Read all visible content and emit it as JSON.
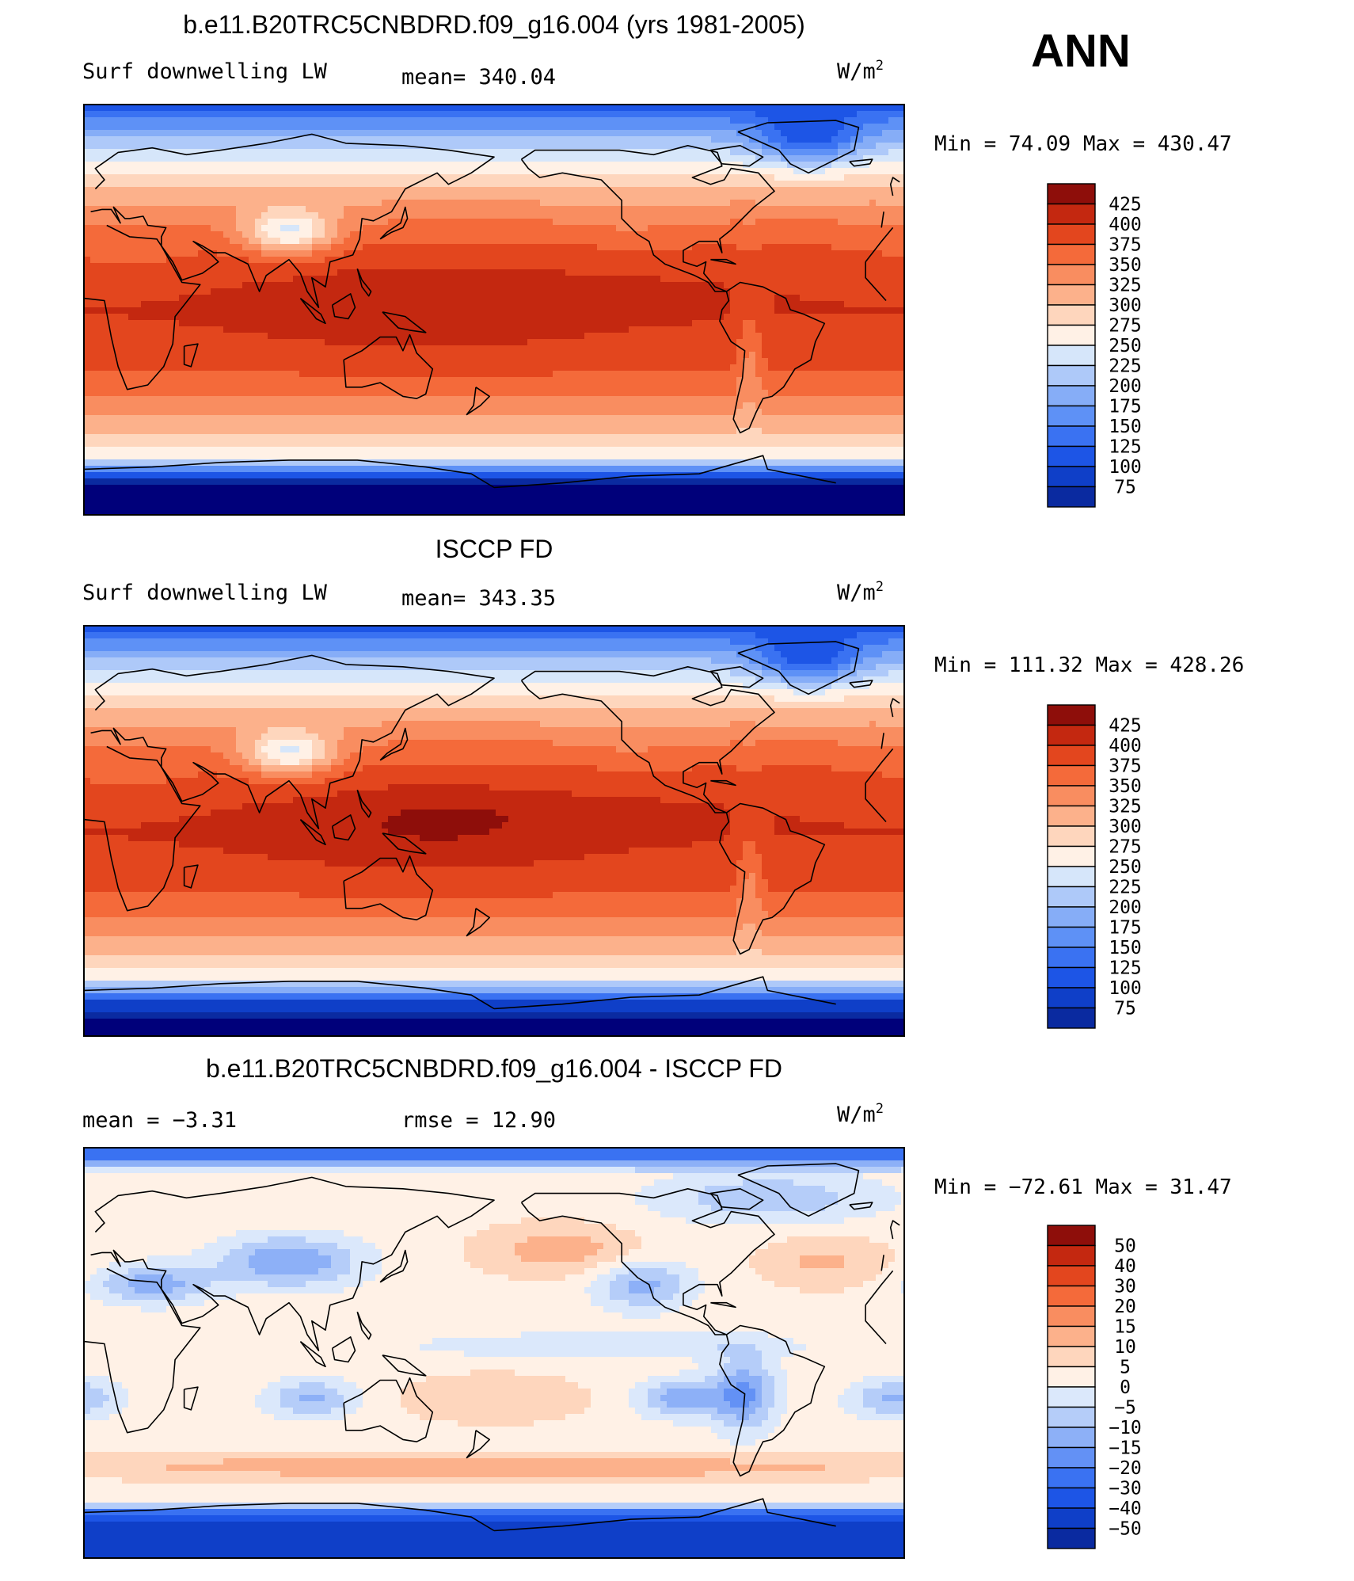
{
  "figure": {
    "season": "ANN"
  },
  "palettes": {
    "abs": [
      "#00007a",
      "#0a2aa0",
      "#0f3fc8",
      "#1d55e6",
      "#3a72f2",
      "#5e91f6",
      "#86adf7",
      "#aec9f9",
      "#d6e6fa",
      "#fff1e6",
      "#fed6bd",
      "#fcb18b",
      "#f98d60",
      "#f46a3a",
      "#e3461e",
      "#c42810",
      "#8e0e0a"
    ],
    "diff": [
      "#00007a",
      "#0a2aa0",
      "#0f3fc8",
      "#1d55e6",
      "#3a72f2",
      "#6391f5",
      "#8db0f7",
      "#b5cdf9",
      "#dbe8fb",
      "#fff1e6",
      "#fed6bd",
      "#fcb18b",
      "#f98d60",
      "#f46a3a",
      "#e3461e",
      "#c42810",
      "#8e0e0a"
    ]
  },
  "panels": [
    {
      "title": "b.e11.B20TRC5CNBDRD.f09_g16.004 (yrs 1981-2005)",
      "left_label": "Surf  downwelling  LW",
      "center_label": "mean=  340.04",
      "units": "W/m",
      "units_sup": "2",
      "minmax": "Min  =    74.09  Max  =  430.47",
      "colorbar": {
        "labels": [
          "425",
          "400",
          "375",
          "350",
          "325",
          "300",
          "275",
          "250",
          "225",
          "200",
          "175",
          "150",
          "125",
          "100",
          "75"
        ],
        "palette": "abs"
      },
      "field": {
        "type": "model",
        "mean": 340.04,
        "min": 74.09,
        "max": 430.47
      }
    },
    {
      "title": "ISCCP FD",
      "left_label": "Surf  downwelling  LW",
      "center_label": "mean=  343.35",
      "units": "W/m",
      "units_sup": "2",
      "minmax": "Min  =  111.32  Max  =  428.26",
      "colorbar": {
        "labels": [
          "425",
          "400",
          "375",
          "350",
          "325",
          "300",
          "275",
          "250",
          "225",
          "200",
          "175",
          "150",
          "125",
          "100",
          "75"
        ],
        "palette": "abs"
      },
      "field": {
        "type": "obs",
        "mean": 343.35,
        "min": 111.32,
        "max": 428.26
      }
    },
    {
      "title": "b.e11.B20TRC5CNBDRD.f09_g16.004 - ISCCP FD",
      "left_label": "mean  =    −3.31",
      "center_label": "rmse  =    12.90",
      "units": "W/m",
      "units_sup": "2",
      "minmax": "Min  =  −72.61  Max  =    31.47",
      "colorbar": {
        "labels": [
          "50",
          "40",
          "30",
          "20",
          "15",
          "10",
          "5",
          "0",
          "−5",
          "−10",
          "−15",
          "−20",
          "−30",
          "−40",
          "−50"
        ],
        "palette": "diff"
      },
      "field": {
        "type": "diff",
        "mean": -3.31,
        "rmse": 12.9,
        "min": -72.61,
        "max": 31.47
      }
    }
  ]
}
